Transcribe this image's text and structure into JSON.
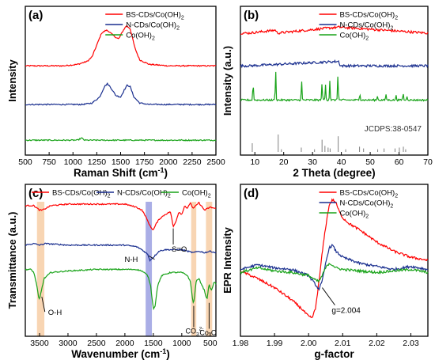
{
  "chart_data": [
    {
      "panel_label": "(a)",
      "type": "line",
      "xlabel": "Raman Shift (cm",
      "xlabel_sup": "-1",
      "xlabel_end": ")",
      "ylabel": "Intensity",
      "xlim": [
        500,
        2500
      ],
      "xticks": [
        500,
        750,
        1000,
        1250,
        1500,
        1750,
        2000,
        2250,
        2500
      ],
      "y_tick_labels": false,
      "legend": "top-right",
      "series": [
        {
          "name": "BS-CDs/Co(OH)",
          "name_sub": "2",
          "color": "#ff0000",
          "offset": 0.6,
          "x": [
            500,
            900,
            1050,
            1150,
            1200,
            1250,
            1300,
            1350,
            1380,
            1430,
            1480,
            1520,
            1560,
            1600,
            1650,
            1700,
            1800,
            2000,
            2500
          ],
          "y": [
            0,
            0,
            0.01,
            0.03,
            0.06,
            0.14,
            0.22,
            0.24,
            0.23,
            0.2,
            0.18,
            0.23,
            0.27,
            0.25,
            0.12,
            0.04,
            0.01,
            0,
            0
          ]
        },
        {
          "name": "N-CDs/Co(OH)",
          "name_sub": "2",
          "color": "#1a2f8f",
          "offset": 0.34,
          "x": [
            500,
            1100,
            1200,
            1280,
            1330,
            1360,
            1390,
            1450,
            1500,
            1540,
            1570,
            1600,
            1640,
            1700,
            1800,
            2500
          ],
          "y": [
            0,
            0,
            0.01,
            0.05,
            0.12,
            0.14,
            0.12,
            0.06,
            0.05,
            0.1,
            0.13,
            0.12,
            0.05,
            0.01,
            0,
            0
          ]
        },
        {
          "name": "Co(OH)",
          "name_sub": "2",
          "color": "#19a319",
          "offset": 0.1,
          "x": [
            500,
            1050,
            1090,
            1120,
            2500
          ],
          "y": [
            0,
            0,
            0.015,
            0,
            0
          ]
        }
      ]
    },
    {
      "panel_label": "(b)",
      "type": "line",
      "xlabel": "2 Theta (degree)",
      "ylabel": "Intensity (a.u.)",
      "xlim": [
        5,
        70
      ],
      "xticks": [
        10,
        20,
        30,
        40,
        50,
        60,
        70
      ],
      "y_tick_labels": false,
      "legend": "top-right",
      "reference_label": "JCDPS:38-0547",
      "reference_lines": [
        9.1,
        18.1,
        19.2,
        26.1,
        30.7,
        33.3,
        34.3,
        35.4,
        36.1,
        38.9,
        41.5,
        46.3,
        47.7,
        52.6,
        54.8,
        58.6,
        60.1,
        61.5,
        62.3
      ],
      "reference_heights": [
        0.5,
        1.0,
        0.15,
        0.25,
        0.15,
        0.7,
        0.35,
        0.25,
        0.2,
        0.9,
        0.15,
        0.3,
        0.2,
        0.15,
        0.2,
        0.2,
        0.25,
        0.3,
        0.15
      ],
      "series": [
        {
          "name": "BS-CDs/Co(OH)",
          "name_sub": "2",
          "color": "#ff0000",
          "offset": 0.82,
          "x": [
            8,
            17.2,
            17.8,
            33.3,
            39.1,
            70
          ],
          "y": [
            0,
            0.02,
            0,
            0.03,
            0.04,
            0
          ]
        },
        {
          "name": "N-CDs/Co(OH)",
          "name_sub": "2",
          "color": "#1a2f8f",
          "offset": 0.6,
          "x": [
            8,
            39.1,
            39.6,
            70
          ],
          "y": [
            0,
            0.03,
            0,
            0
          ]
        },
        {
          "name": "Co(OH)",
          "name_sub": "2",
          "color": "#19a319",
          "offset": 0.37,
          "peaks": [
            [
              9.4,
              0.12
            ],
            [
              17.2,
              0.2
            ],
            [
              26.2,
              0.13
            ],
            [
              33.3,
              0.12
            ],
            [
              34.5,
              0.1
            ],
            [
              36.0,
              0.13
            ],
            [
              38.8,
              0.17
            ],
            [
              46.4,
              0.05
            ],
            [
              52.5,
              0.03
            ],
            [
              55.5,
              0.04
            ],
            [
              59.0,
              0.035
            ],
            [
              61.4,
              0.05
            ],
            [
              62.8,
              0.03
            ]
          ]
        }
      ]
    },
    {
      "panel_label": "(c)",
      "type": "line",
      "xlabel": "Wavenumber (cm",
      "xlabel_sup": "-1",
      "xlabel_end": ")",
      "ylabel": "Transmittance (a.u.)",
      "xlim": [
        3750,
        400
      ],
      "xticks": [
        3500,
        3000,
        2500,
        2000,
        1500,
        1000,
        500
      ],
      "y_tick_labels": false,
      "legend": "top",
      "highlight_bands": [
        {
          "center": 3480,
          "width": 130,
          "color": "#f5c79a"
        },
        {
          "center": 1580,
          "width": 110,
          "color": "#8e93de"
        },
        {
          "center": 790,
          "width": 90,
          "color": "#f5c79a"
        },
        {
          "center": 520,
          "width": 110,
          "color": "#f5c79a"
        }
      ],
      "annotations": [
        {
          "text": "S=O",
          "at": 1150
        },
        {
          "text": "N-H",
          "at": 1580
        },
        {
          "text": "O-H",
          "at": 3480
        },
        {
          "text": "CO",
          "sub": "3",
          "sup": "2-",
          "at": 790
        },
        {
          "text": "Co-O",
          "at": 520
        }
      ],
      "series": [
        {
          "name": "BS-CDs/Co(OH)",
          "name_sub": "2",
          "color": "#ff0000",
          "x": [
            3750,
            3600,
            3500,
            3450,
            3300,
            3000,
            2500,
            2000,
            1800,
            1700,
            1650,
            1600,
            1550,
            1500,
            1450,
            1400,
            1300,
            1200,
            1150,
            1100,
            1050,
            1000,
            950,
            900,
            850,
            800,
            700,
            600,
            500,
            400
          ],
          "y": [
            0.86,
            0.86,
            0.83,
            0.83,
            0.86,
            0.87,
            0.87,
            0.87,
            0.85,
            0.83,
            0.8,
            0.76,
            0.72,
            0.7,
            0.74,
            0.77,
            0.8,
            0.82,
            0.72,
            0.76,
            0.82,
            0.8,
            0.86,
            0.84,
            0.88,
            0.84,
            0.88,
            0.83,
            0.85,
            0.84
          ]
        },
        {
          "name": "N-CDs/Co(OH)",
          "name_sub": "2",
          "color": "#1a2f8f",
          "x": [
            3750,
            3600,
            3500,
            3400,
            3000,
            2500,
            2000,
            1800,
            1700,
            1600,
            1560,
            1500,
            1400,
            1300,
            1000,
            900,
            800,
            700,
            600,
            500,
            400
          ],
          "y": [
            0.6,
            0.61,
            0.6,
            0.61,
            0.6,
            0.6,
            0.6,
            0.59,
            0.57,
            0.54,
            0.5,
            0.52,
            0.56,
            0.57,
            0.57,
            0.56,
            0.55,
            0.56,
            0.55,
            0.56,
            0.55
          ]
        },
        {
          "name": "Co(OH)",
          "name_sub": "2",
          "color": "#19a319",
          "x": [
            3750,
            3650,
            3600,
            3550,
            3520,
            3500,
            3480,
            3420,
            3300,
            3000,
            2500,
            2000,
            1800,
            1700,
            1600,
            1550,
            1500,
            1470,
            1420,
            1350,
            1200,
            1000,
            900,
            850,
            800,
            780,
            750,
            700,
            650,
            600,
            560,
            520,
            480,
            430,
            400
          ],
          "y": [
            0.44,
            0.44,
            0.42,
            0.34,
            0.26,
            0.24,
            0.28,
            0.38,
            0.42,
            0.43,
            0.44,
            0.44,
            0.44,
            0.43,
            0.4,
            0.34,
            0.18,
            0.2,
            0.34,
            0.4,
            0.42,
            0.42,
            0.4,
            0.36,
            0.22,
            0.24,
            0.36,
            0.38,
            0.34,
            0.3,
            0.24,
            0.34,
            0.3,
            0.36,
            0.34
          ]
        }
      ]
    },
    {
      "panel_label": "(d)",
      "type": "line",
      "xlabel": "g-factor",
      "ylabel": "EPR Intensity",
      "xlim": [
        1.98,
        2.035
      ],
      "xticks": [
        1.98,
        1.99,
        2.0,
        2.01,
        2.02,
        2.03
      ],
      "y_tick_labels": false,
      "legend": "top-right",
      "annotation": {
        "text": "g=2.004",
        "at": 2.004
      },
      "series": [
        {
          "name": "BS-CDs/Co(OH)",
          "name_sub": "2",
          "color": "#ff0000",
          "x": [
            1.98,
            1.985,
            1.99,
            1.995,
            1.998,
            2.0,
            2.001,
            2.002,
            2.003,
            2.004,
            2.005,
            2.006,
            2.007,
            2.008,
            2.009,
            2.01,
            2.012,
            2.015,
            2.02,
            2.025,
            2.03,
            2.035
          ],
          "y": [
            0.43,
            0.38,
            0.32,
            0.24,
            0.18,
            0.13,
            0.12,
            0.18,
            0.35,
            0.55,
            0.72,
            0.86,
            0.9,
            0.88,
            0.82,
            0.78,
            0.74,
            0.7,
            0.62,
            0.56,
            0.52,
            0.5
          ]
        },
        {
          "name": "N-CDs/Co(OH)",
          "name_sub": "2",
          "color": "#1a2f8f",
          "x": [
            1.98,
            1.985,
            1.99,
            1.995,
            2.0,
            2.002,
            2.003,
            2.004,
            2.005,
            2.006,
            2.007,
            2.008,
            2.01,
            2.015,
            2.02,
            2.025,
            2.03,
            2.035
          ],
          "y": [
            0.44,
            0.47,
            0.45,
            0.44,
            0.4,
            0.34,
            0.31,
            0.36,
            0.48,
            0.58,
            0.6,
            0.56,
            0.52,
            0.48,
            0.46,
            0.44,
            0.46,
            0.44
          ]
        },
        {
          "name": "Co(OH)",
          "name_sub": "2",
          "color": "#19a319",
          "x": [
            1.98,
            1.985,
            1.99,
            1.995,
            2.0,
            2.002,
            2.003,
            2.004,
            2.005,
            2.006,
            2.007,
            2.008,
            2.01,
            2.015,
            2.02,
            2.025,
            2.03,
            2.035
          ],
          "y": [
            0.42,
            0.45,
            0.43,
            0.42,
            0.4,
            0.37,
            0.36,
            0.4,
            0.45,
            0.48,
            0.47,
            0.45,
            0.44,
            0.43,
            0.42,
            0.43,
            0.44,
            0.42
          ]
        }
      ]
    }
  ]
}
